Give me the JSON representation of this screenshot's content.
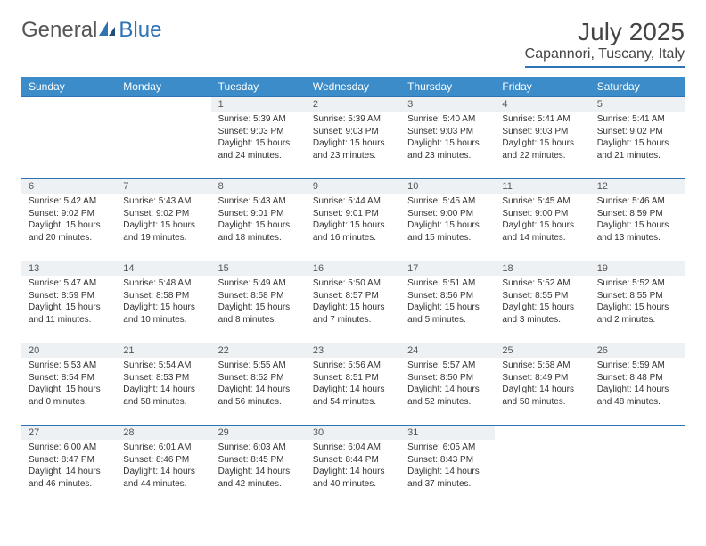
{
  "logo": {
    "text_general": "General",
    "text_blue": "Blue"
  },
  "title": "July 2025",
  "location": "Capannori, Tuscany, Italy",
  "colors": {
    "header_bg": "#3b8cc9",
    "accent": "#2e74b5",
    "day_number_bg": "#eef1f4"
  },
  "weekdays": [
    "Sunday",
    "Monday",
    "Tuesday",
    "Wednesday",
    "Thursday",
    "Friday",
    "Saturday"
  ],
  "weeks": [
    [
      null,
      null,
      {
        "day": "1",
        "sunrise": "5:39 AM",
        "sunset": "9:03 PM",
        "daylight": "15 hours and 24 minutes."
      },
      {
        "day": "2",
        "sunrise": "5:39 AM",
        "sunset": "9:03 PM",
        "daylight": "15 hours and 23 minutes."
      },
      {
        "day": "3",
        "sunrise": "5:40 AM",
        "sunset": "9:03 PM",
        "daylight": "15 hours and 23 minutes."
      },
      {
        "day": "4",
        "sunrise": "5:41 AM",
        "sunset": "9:03 PM",
        "daylight": "15 hours and 22 minutes."
      },
      {
        "day": "5",
        "sunrise": "5:41 AM",
        "sunset": "9:02 PM",
        "daylight": "15 hours and 21 minutes."
      }
    ],
    [
      {
        "day": "6",
        "sunrise": "5:42 AM",
        "sunset": "9:02 PM",
        "daylight": "15 hours and 20 minutes."
      },
      {
        "day": "7",
        "sunrise": "5:43 AM",
        "sunset": "9:02 PM",
        "daylight": "15 hours and 19 minutes."
      },
      {
        "day": "8",
        "sunrise": "5:43 AM",
        "sunset": "9:01 PM",
        "daylight": "15 hours and 18 minutes."
      },
      {
        "day": "9",
        "sunrise": "5:44 AM",
        "sunset": "9:01 PM",
        "daylight": "15 hours and 16 minutes."
      },
      {
        "day": "10",
        "sunrise": "5:45 AM",
        "sunset": "9:00 PM",
        "daylight": "15 hours and 15 minutes."
      },
      {
        "day": "11",
        "sunrise": "5:45 AM",
        "sunset": "9:00 PM",
        "daylight": "15 hours and 14 minutes."
      },
      {
        "day": "12",
        "sunrise": "5:46 AM",
        "sunset": "8:59 PM",
        "daylight": "15 hours and 13 minutes."
      }
    ],
    [
      {
        "day": "13",
        "sunrise": "5:47 AM",
        "sunset": "8:59 PM",
        "daylight": "15 hours and 11 minutes."
      },
      {
        "day": "14",
        "sunrise": "5:48 AM",
        "sunset": "8:58 PM",
        "daylight": "15 hours and 10 minutes."
      },
      {
        "day": "15",
        "sunrise": "5:49 AM",
        "sunset": "8:58 PM",
        "daylight": "15 hours and 8 minutes."
      },
      {
        "day": "16",
        "sunrise": "5:50 AM",
        "sunset": "8:57 PM",
        "daylight": "15 hours and 7 minutes."
      },
      {
        "day": "17",
        "sunrise": "5:51 AM",
        "sunset": "8:56 PM",
        "daylight": "15 hours and 5 minutes."
      },
      {
        "day": "18",
        "sunrise": "5:52 AM",
        "sunset": "8:55 PM",
        "daylight": "15 hours and 3 minutes."
      },
      {
        "day": "19",
        "sunrise": "5:52 AM",
        "sunset": "8:55 PM",
        "daylight": "15 hours and 2 minutes."
      }
    ],
    [
      {
        "day": "20",
        "sunrise": "5:53 AM",
        "sunset": "8:54 PM",
        "daylight": "15 hours and 0 minutes."
      },
      {
        "day": "21",
        "sunrise": "5:54 AM",
        "sunset": "8:53 PM",
        "daylight": "14 hours and 58 minutes."
      },
      {
        "day": "22",
        "sunrise": "5:55 AM",
        "sunset": "8:52 PM",
        "daylight": "14 hours and 56 minutes."
      },
      {
        "day": "23",
        "sunrise": "5:56 AM",
        "sunset": "8:51 PM",
        "daylight": "14 hours and 54 minutes."
      },
      {
        "day": "24",
        "sunrise": "5:57 AM",
        "sunset": "8:50 PM",
        "daylight": "14 hours and 52 minutes."
      },
      {
        "day": "25",
        "sunrise": "5:58 AM",
        "sunset": "8:49 PM",
        "daylight": "14 hours and 50 minutes."
      },
      {
        "day": "26",
        "sunrise": "5:59 AM",
        "sunset": "8:48 PM",
        "daylight": "14 hours and 48 minutes."
      }
    ],
    [
      {
        "day": "27",
        "sunrise": "6:00 AM",
        "sunset": "8:47 PM",
        "daylight": "14 hours and 46 minutes."
      },
      {
        "day": "28",
        "sunrise": "6:01 AM",
        "sunset": "8:46 PM",
        "daylight": "14 hours and 44 minutes."
      },
      {
        "day": "29",
        "sunrise": "6:03 AM",
        "sunset": "8:45 PM",
        "daylight": "14 hours and 42 minutes."
      },
      {
        "day": "30",
        "sunrise": "6:04 AM",
        "sunset": "8:44 PM",
        "daylight": "14 hours and 40 minutes."
      },
      {
        "day": "31",
        "sunrise": "6:05 AM",
        "sunset": "8:43 PM",
        "daylight": "14 hours and 37 minutes."
      },
      null,
      null
    ]
  ]
}
